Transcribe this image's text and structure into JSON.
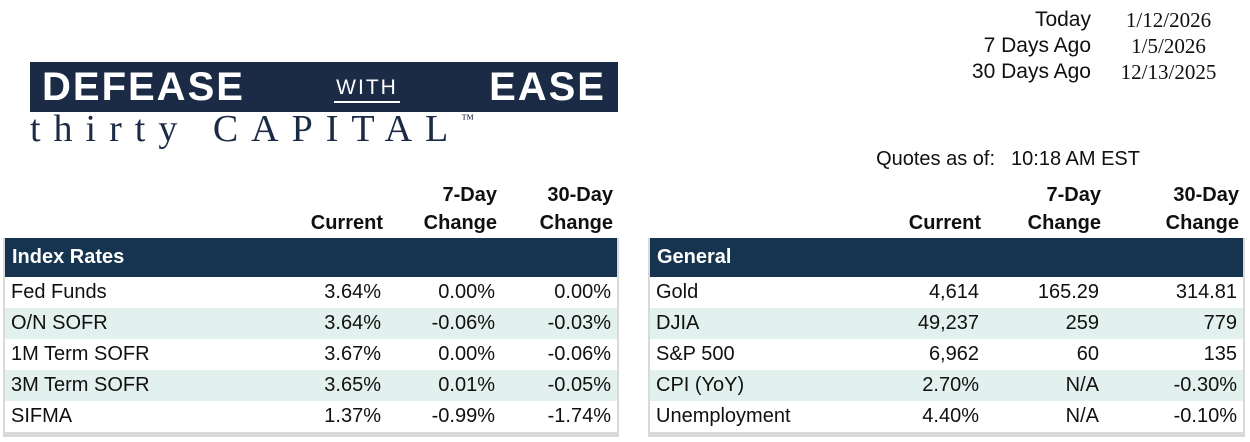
{
  "logo": {
    "word1": "DEFEASE",
    "word2": "WITH",
    "word3": "EASE",
    "tagline": "thirty CAPITAL",
    "trademark": "™"
  },
  "dates": {
    "rows": [
      {
        "label": "Today",
        "value": "1/12/2026"
      },
      {
        "label": "7 Days Ago",
        "value": "1/5/2026"
      },
      {
        "label": "30 Days Ago",
        "value": "12/13/2025"
      }
    ]
  },
  "quotes": {
    "label": "Quotes as of:",
    "value": "10:18 AM EST"
  },
  "columns": {
    "current": "Current",
    "seven_day": "7-Day",
    "thirty_day": "30-Day",
    "change": "Change"
  },
  "tables": [
    {
      "section": "Index Rates",
      "rows": [
        [
          "Fed Funds",
          "3.64%",
          "0.00%",
          "0.00%"
        ],
        [
          "O/N SOFR",
          "3.64%",
          "-0.06%",
          "-0.03%"
        ],
        [
          "1M Term SOFR",
          "3.67%",
          "0.00%",
          "-0.06%"
        ],
        [
          "3M Term SOFR",
          "3.65%",
          "0.01%",
          "-0.05%"
        ],
        [
          "SIFMA",
          "1.37%",
          "-0.99%",
          "-1.74%"
        ]
      ]
    },
    {
      "section": "General",
      "rows": [
        [
          "Gold",
          "4,614",
          "165.29",
          "314.81"
        ],
        [
          "DJIA",
          "49,237",
          "259",
          "779"
        ],
        [
          "S&P 500",
          "6,962",
          "60",
          "135"
        ],
        [
          "CPI (YoY)",
          "2.70%",
          "N/A",
          "-0.30%"
        ],
        [
          "Unemployment",
          "4.40%",
          "N/A",
          "-0.10%"
        ]
      ]
    }
  ],
  "colors": {
    "navy_band": "#163450",
    "logo_navy": "#1c2b45",
    "row_stripe": "#e2f0ee",
    "border_gray": "#d9d9d9",
    "text_dark": "#101010"
  }
}
